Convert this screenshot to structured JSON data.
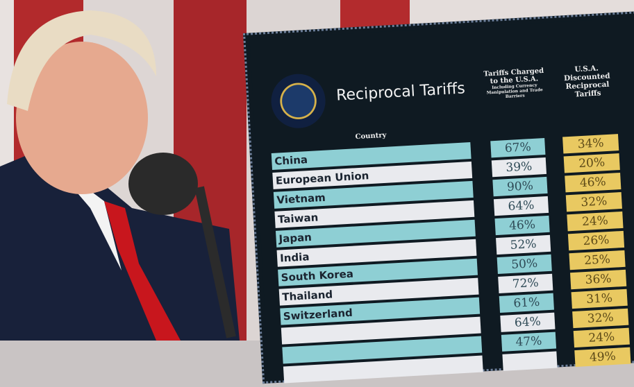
{
  "board": {
    "title": "Reciprocal Tariffs",
    "seal": "presidential-seal",
    "country_header": "Country",
    "col1_header": "Tariffs Charged to the U.S.A.",
    "col1_subheader": "Including Currency Manipulation and Trade Barriers",
    "col2_header": "U.S.A. Discounted Reciprocal Tariffs",
    "rows": [
      {
        "country": "China",
        "charged": "67%",
        "reciprocal": "34%"
      },
      {
        "country": "European Union",
        "charged": "39%",
        "reciprocal": "20%"
      },
      {
        "country": "Vietnam",
        "charged": "90%",
        "reciprocal": "46%"
      },
      {
        "country": "Taiwan",
        "charged": "64%",
        "reciprocal": "32%"
      },
      {
        "country": "Japan",
        "charged": "46%",
        "reciprocal": "24%"
      },
      {
        "country": "India",
        "charged": "52%",
        "reciprocal": "26%"
      },
      {
        "country": "South Korea",
        "charged": "50%",
        "reciprocal": "25%"
      },
      {
        "country": "Thailand",
        "charged": "72%",
        "reciprocal": "36%"
      },
      {
        "country": "Switzerland",
        "charged": "61%",
        "reciprocal": "31%"
      },
      {
        "country": "",
        "charged": "64%",
        "reciprocal": "32%"
      },
      {
        "country": "",
        "charged": "47%",
        "reciprocal": "24%"
      },
      {
        "country": "",
        "charged": "",
        "reciprocal": "49%"
      }
    ]
  },
  "colors": {
    "teal": "#8ecfd4",
    "gold": "#e9c961",
    "board": "#0f1a22",
    "stripe_red": "#b22a2c"
  }
}
